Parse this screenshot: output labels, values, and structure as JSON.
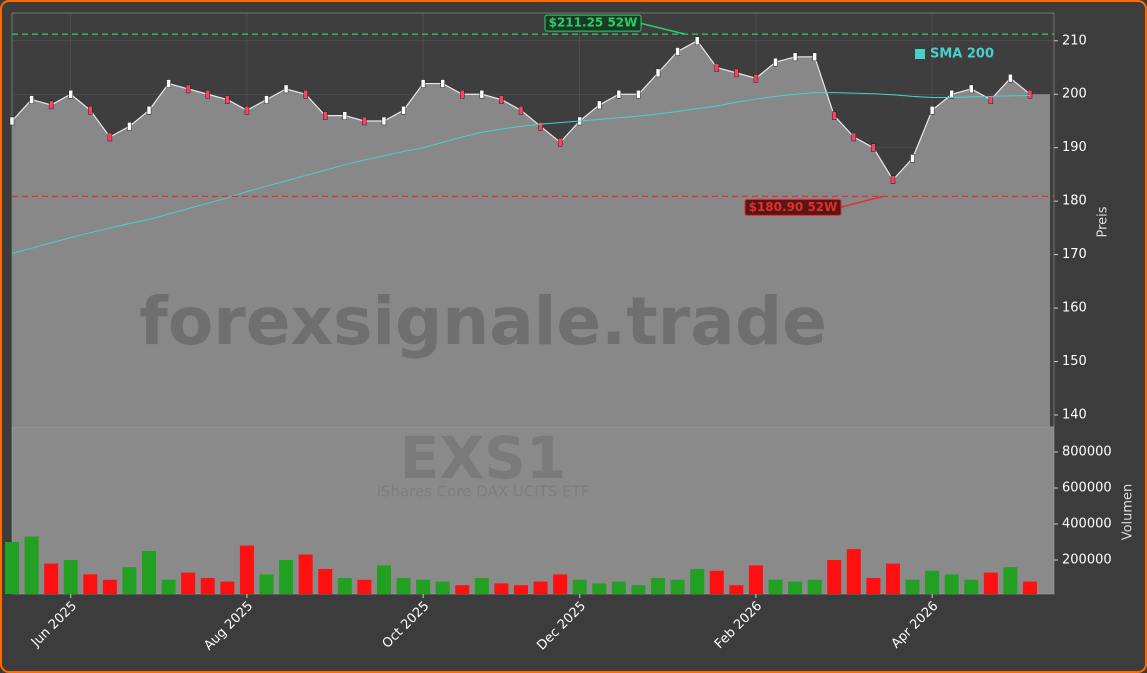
{
  "chart_data": {
    "type": "price-volume",
    "watermark": "forexsignale.trade",
    "symbol": "EXS1",
    "subtitle": "iShares Core DAX UCITS ETF",
    "categories": [
      null,
      null,
      null,
      "Jun 2025",
      null,
      null,
      null,
      null,
      null,
      null,
      null,
      null,
      "Aug 2025",
      null,
      null,
      null,
      null,
      null,
      null,
      null,
      null,
      "Oct 2025",
      null,
      null,
      null,
      null,
      null,
      null,
      null,
      "Dec 2025",
      null,
      null,
      null,
      null,
      null,
      null,
      null,
      null,
      "Feb 2026",
      null,
      null,
      null,
      null,
      null,
      null,
      null,
      null,
      "Apr 2026",
      null,
      null,
      null,
      null,
      null
    ],
    "series": [
      {
        "name": "Preis",
        "color": "#e8e8e8",
        "fill": "#888888",
        "values": [
          195,
          199,
          198,
          200,
          197,
          192,
          194,
          197,
          202,
          201,
          200,
          199,
          197,
          199,
          201,
          200,
          196,
          196,
          195,
          195,
          197,
          202,
          202,
          200,
          200,
          199,
          197,
          194,
          191,
          195,
          198,
          200,
          200,
          204,
          208,
          210,
          205,
          204,
          203,
          206,
          207,
          207,
          196,
          192,
          190,
          184,
          188,
          197,
          200,
          201,
          199,
          203,
          200
        ]
      },
      {
        "name": "SMA 200",
        "color": "#48d1cc",
        "values": [
          170.2,
          171.2,
          172.2,
          173.2,
          174.1,
          175,
          175.8,
          176.6,
          177.6,
          178.6,
          179.6,
          180.6,
          181.8,
          182.8,
          183.8,
          184.8,
          185.8,
          186.8,
          187.7,
          188.5,
          189.3,
          190,
          191,
          192,
          192.9,
          193.5,
          194,
          194.4,
          194.7,
          195,
          195.3,
          195.6,
          195.9,
          196.3,
          196.8,
          197.3,
          197.8,
          198.5,
          199.1,
          199.6,
          200,
          200.3,
          200.3,
          200.2,
          200.1,
          199.9,
          199.6,
          199.4,
          199.4,
          199.5,
          199.6,
          199.7,
          199.8
        ]
      },
      {
        "name": "Volumen",
        "axis": "y2",
        "up_color": "#22a022",
        "down_color": "#ff1010",
        "values": [
          300000,
          330000,
          180000,
          200000,
          120000,
          90000,
          160000,
          250000,
          90000,
          130000,
          100000,
          80000,
          280000,
          120000,
          200000,
          230000,
          150000,
          100000,
          90000,
          170000,
          100000,
          90000,
          80000,
          60000,
          100000,
          70000,
          60000,
          80000,
          120000,
          90000,
          70000,
          80000,
          60000,
          100000,
          90000,
          150000,
          140000,
          60000,
          170000,
          90000,
          80000,
          90000,
          200000,
          260000,
          100000,
          180000,
          90000,
          140000,
          120000,
          90000,
          130000,
          160000,
          80000
        ]
      }
    ],
    "ylabel": "Preis",
    "y2label": "Volumen",
    "ylim": [
      137.75,
      215.2
    ],
    "yticks": [
      140,
      150,
      160,
      170,
      180,
      190,
      200,
      210
    ],
    "y2lim": [
      11000,
      939000
    ],
    "y2ticks": [
      200000,
      400000,
      600000,
      800000
    ],
    "high": {
      "value": 211.25,
      "label": "$211.25 52W",
      "color": "#2ecc71"
    },
    "low": {
      "value": 180.9,
      "label": "$180.90 52W",
      "color": "#e03030"
    },
    "grid": true
  }
}
